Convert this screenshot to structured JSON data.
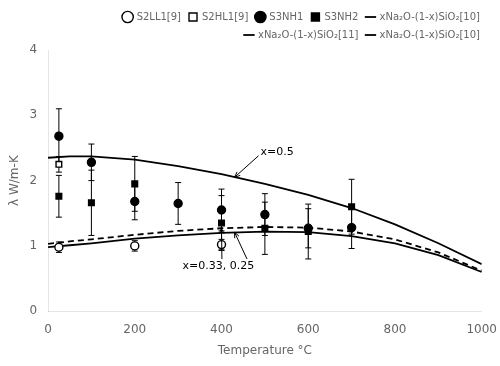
{
  "chart_data": {
    "type": "line",
    "title": "",
    "xlabel": "Temperature °C",
    "ylabel": "λ W/m-K",
    "xlim": [
      0,
      1000
    ],
    "ylim": [
      0,
      4
    ],
    "xticks": [
      0,
      200,
      400,
      600,
      800,
      1000
    ],
    "yticks": [
      0,
      1,
      2,
      3,
      4
    ],
    "grid": false,
    "legend": "upper right",
    "series": [
      {
        "name": "xNa₂O-(1-x)SiO₂[10]",
        "type": "line",
        "line_style": "solid",
        "color": "black",
        "x": [
          0,
          50,
          100,
          200,
          300,
          400,
          500,
          600,
          700,
          800,
          900,
          1000
        ],
        "values": [
          2.35,
          2.37,
          2.37,
          2.32,
          2.22,
          2.1,
          1.95,
          1.78,
          1.58,
          1.33,
          1.04,
          0.72
        ]
      },
      {
        "name": "xNa₂O-(1-x)SiO₂[11]",
        "type": "line",
        "line_style": "dashed",
        "color": "black",
        "x": [
          0,
          50,
          100,
          200,
          300,
          400,
          500,
          600,
          700,
          800,
          900,
          1000
        ],
        "values": [
          1.03,
          1.07,
          1.1,
          1.17,
          1.23,
          1.27,
          1.29,
          1.28,
          1.22,
          1.1,
          0.9,
          0.62
        ]
      },
      {
        "name": "xNa₂O-(1-x)SiO₂[10]",
        "type": "line",
        "line_style": "solid",
        "color": "black",
        "x": [
          0,
          50,
          100,
          200,
          300,
          400,
          500,
          600,
          700,
          800,
          900,
          1000
        ],
        "values": [
          0.98,
          1.01,
          1.04,
          1.11,
          1.16,
          1.2,
          1.22,
          1.21,
          1.15,
          1.04,
          0.86,
          0.6
        ]
      },
      {
        "name": "S2LL1[9]",
        "type": "scatter",
        "marker": "open_circle",
        "color": "black",
        "x": [
          25,
          200,
          400
        ],
        "values": [
          0.98,
          1.0,
          1.02
        ],
        "errors": [
          0.08,
          0.08,
          0.08
        ]
      },
      {
        "name": "S2HL1[9]",
        "type": "scatter",
        "marker": "open_square",
        "color": "black",
        "x": [
          25
        ],
        "values": [
          2.25
        ],
        "errors": [
          0.12
        ]
      },
      {
        "name": "S3NH1",
        "type": "scatter",
        "marker": "circle",
        "color": "black",
        "x": [
          25,
          100,
          200,
          300,
          400,
          500,
          600,
          700
        ],
        "values": [
          2.68,
          2.28,
          1.68,
          1.65,
          1.55,
          1.48,
          1.27,
          1.28
        ],
        "errors": [
          0.42,
          0.28,
          0.28,
          0.32,
          0.32,
          0.32,
          0.3,
          0.32
        ]
      },
      {
        "name": "S3NH2",
        "type": "scatter",
        "marker": "square",
        "color": "black",
        "x": [
          25,
          100,
          200,
          400,
          500,
          600,
          700
        ],
        "values": [
          1.76,
          1.66,
          1.95,
          1.35,
          1.27,
          1.22,
          1.6
        ],
        "errors": [
          0.32,
          0.5,
          0.42,
          0.42,
          0.4,
          0.42,
          0.42
        ]
      }
    ],
    "annotations": [
      {
        "text": "x=0.5",
        "x": 490,
        "y": 2.35,
        "arrows": [
          [
            430,
            2.05
          ]
        ]
      },
      {
        "text": "x=0.33, 0.25",
        "x": 310,
        "y": 0.6,
        "arrows": [
          [
            400,
            1.27
          ],
          [
            430,
            1.21
          ]
        ]
      }
    ]
  }
}
